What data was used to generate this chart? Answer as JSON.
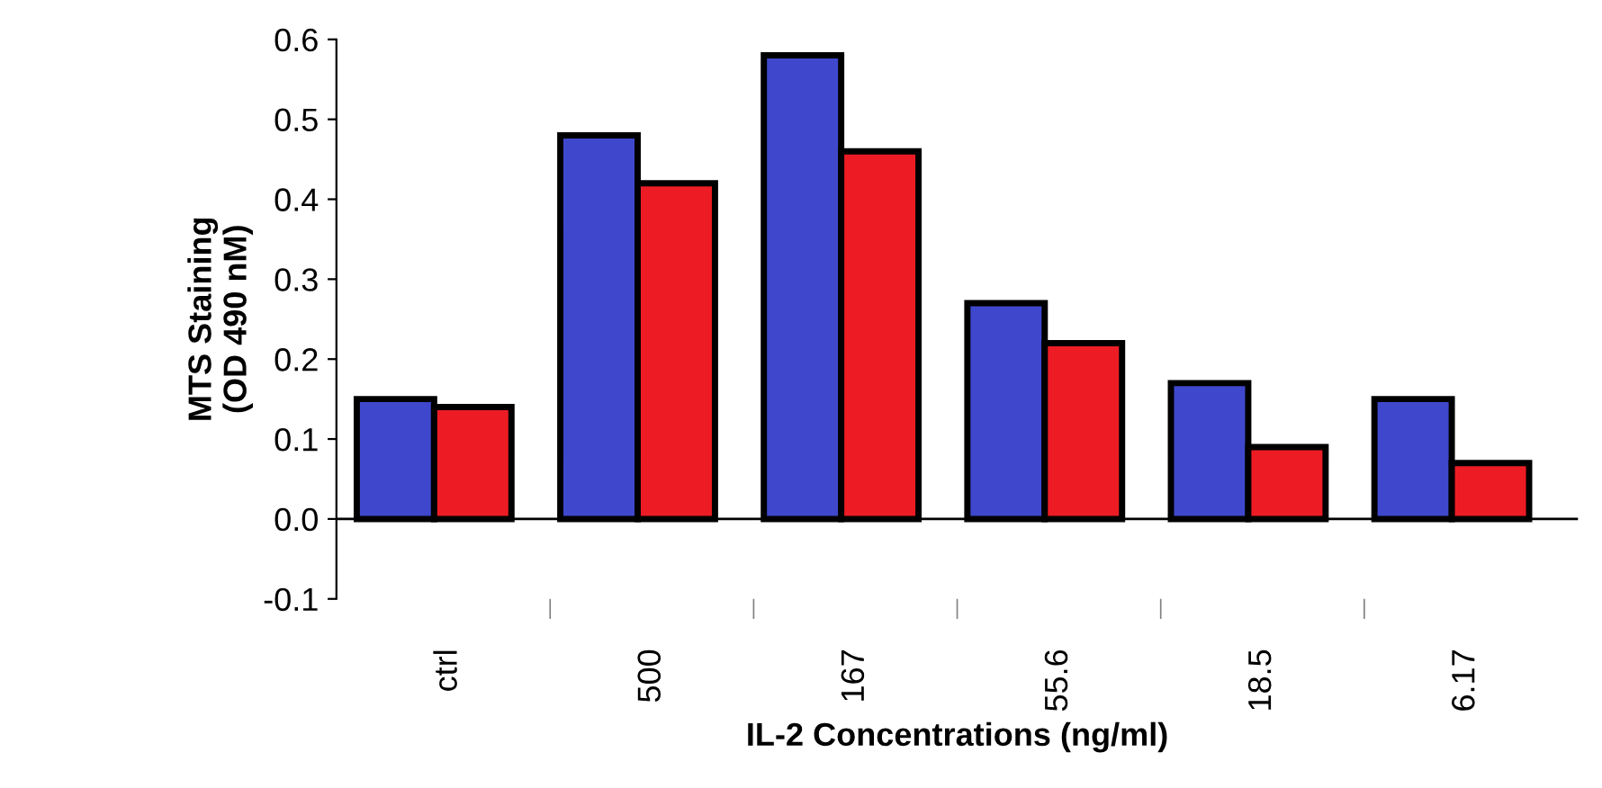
{
  "chart_data": {
    "type": "bar",
    "xlabel": "IL-2 Concentrations (ng/ml)",
    "ylabel": "MTS Staining\n(OD 490 nM)",
    "categories": [
      "ctrl",
      "500",
      "167",
      "55.6",
      "18.5",
      "6.17"
    ],
    "series": [
      {
        "color": "#3f48cc",
        "values": [
          0.15,
          0.48,
          0.58,
          0.27,
          0.17,
          0.15
        ]
      },
      {
        "color": "#ed1c24",
        "values": [
          0.14,
          0.42,
          0.46,
          0.22,
          0.09,
          0.07
        ]
      }
    ],
    "ylim": [
      -0.1,
      0.6
    ],
    "yticks": [
      0.6,
      0.5,
      0.4,
      0.3,
      0.2,
      0.1,
      {
        "value": 0,
        "label": "0.0"
      },
      -0.1
    ]
  }
}
